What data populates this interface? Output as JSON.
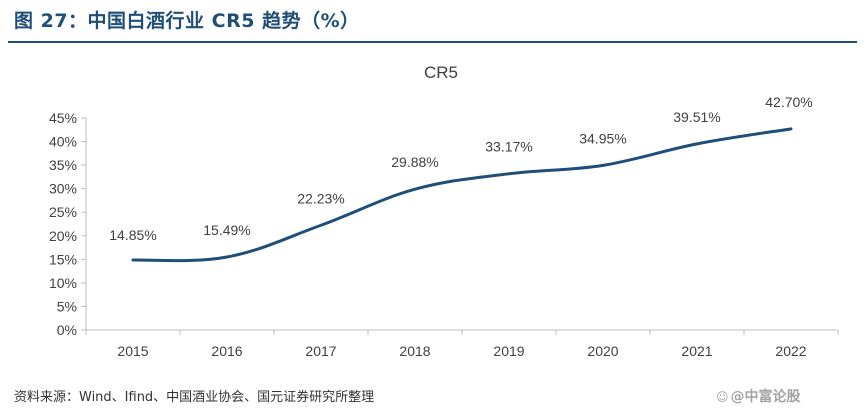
{
  "figure": {
    "title": "图 27：中国白酒行业 CR5 趋势（%）",
    "source": "资料来源：Wind、Ifind、中国酒业协会、国元证券研究所整理",
    "watermark_icon": "weibo-like-icon",
    "watermark": "@中富论股"
  },
  "colors": {
    "title": "#1f4e79",
    "line": "#1f4e79",
    "axis": "#bfbfbf",
    "text": "#404040"
  },
  "chart_data": {
    "type": "line",
    "title": "CR5",
    "categories": [
      "2015",
      "2016",
      "2017",
      "2018",
      "2019",
      "2020",
      "2021",
      "2022"
    ],
    "series": [
      {
        "name": "CR5",
        "values": [
          14.85,
          15.49,
          22.23,
          29.88,
          33.17,
          34.95,
          39.51,
          42.7
        ],
        "labels": [
          "14.85%",
          "15.49%",
          "22.23%",
          "29.88%",
          "33.17%",
          "34.95%",
          "39.51%",
          "42.70%"
        ]
      }
    ],
    "yticks": [
      "0%",
      "5%",
      "10%",
      "15%",
      "20%",
      "25%",
      "30%",
      "35%",
      "40%",
      "45%"
    ],
    "ylim": [
      0,
      45
    ],
    "xlabel": "",
    "ylabel": "",
    "grid": false,
    "smooth": true
  }
}
